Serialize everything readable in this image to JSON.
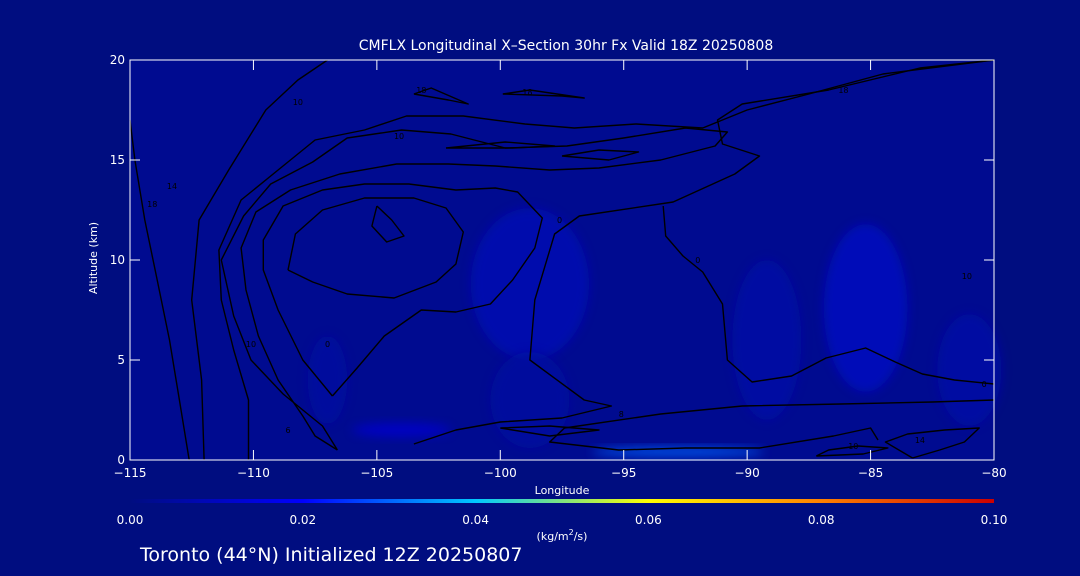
{
  "chart_data": {
    "type": "heatmap",
    "title": "CMFLX Longitudinal X–Section 30hr  Fx Valid 18Z 20250808",
    "xlabel": "Longitude",
    "ylabel": "Altitude (km)",
    "xlim": [
      -115,
      -80
    ],
    "ylim": [
      0,
      20
    ],
    "x_ticks": [
      -115,
      -110,
      -105,
      -100,
      -95,
      -90,
      -85,
      -80
    ],
    "x_tick_labels": [
      "−115",
      "−110",
      "−105",
      "−100",
      "−95",
      "−90",
      "−85",
      "−80"
    ],
    "y_ticks": [
      0,
      5,
      10,
      15,
      20
    ],
    "y_tick_labels": [
      "0",
      "5",
      "10",
      "15",
      "20"
    ],
    "colorbar": {
      "min": 0.0,
      "max": 0.1,
      "ticks": [
        "0.00",
        "0.02",
        "0.04",
        "0.06",
        "0.08",
        "0.10"
      ],
      "unit": "(kg/m²/s)",
      "colors": [
        "#000d80",
        "#0000ff",
        "#00c8ff",
        "#ffff00",
        "#ff8000",
        "#cc0000"
      ]
    },
    "shaded_regions": [
      {
        "lon_center": -98.8,
        "alt_center": 8.8,
        "lon_halfwidth": 2.4,
        "alt_halfwidth": 3.8,
        "value": 0.008
      },
      {
        "lon_center": -98.8,
        "alt_center": 3.0,
        "lon_halfwidth": 1.6,
        "alt_halfwidth": 2.4,
        "value": 0.005
      },
      {
        "lon_center": -85.2,
        "alt_center": 7.6,
        "lon_halfwidth": 1.7,
        "alt_halfwidth": 4.2,
        "value": 0.01
      },
      {
        "lon_center": -89.2,
        "alt_center": 6.0,
        "lon_halfwidth": 1.4,
        "alt_halfwidth": 4.0,
        "value": 0.006
      },
      {
        "lon_center": -81.0,
        "alt_center": 4.5,
        "lon_halfwidth": 1.3,
        "alt_halfwidth": 2.8,
        "value": 0.006
      },
      {
        "lon_center": -107.0,
        "alt_center": 4.0,
        "lon_halfwidth": 0.8,
        "alt_halfwidth": 2.2,
        "value": 0.005
      },
      {
        "lon_center": -104.0,
        "alt_center": 1.5,
        "lon_halfwidth": 2.0,
        "alt_halfwidth": 0.35,
        "value": 0.012
      },
      {
        "lon_center": -92.8,
        "alt_center": 0.4,
        "lon_halfwidth": 3.5,
        "alt_halfwidth": 0.22,
        "value": 0.03
      }
    ],
    "contours": [
      {
        "level": "18",
        "points": [
          [
            -112.6,
            0
          ],
          [
            -113,
            3
          ],
          [
            -113.4,
            6
          ],
          [
            -113.9,
            9
          ],
          [
            -114.4,
            12
          ],
          [
            -114.8,
            15
          ],
          [
            -115,
            17
          ]
        ]
      },
      {
        "level": "14",
        "points": [
          [
            -112.0,
            0
          ],
          [
            -112.1,
            4
          ],
          [
            -112.5,
            8
          ],
          [
            -112.2,
            12
          ],
          [
            -111.0,
            14.5
          ],
          [
            -109.5,
            17.5
          ],
          [
            -108.2,
            19
          ],
          [
            -107,
            20
          ]
        ]
      },
      {
        "level": "10",
        "points": [
          [
            -110.2,
            0
          ],
          [
            -110.2,
            3
          ],
          [
            -110.8,
            5.5
          ],
          [
            -111.3,
            8
          ],
          [
            -111.4,
            10.5
          ],
          [
            -110.5,
            13
          ],
          [
            -109.0,
            14.5
          ],
          [
            -107.5,
            16
          ],
          [
            -105.5,
            16.5
          ],
          [
            -103.8,
            17.2
          ],
          [
            -101.5,
            17.2
          ],
          [
            -99,
            16.8
          ],
          [
            -97,
            16.6
          ],
          [
            -94.5,
            16.8
          ],
          [
            -91.8,
            16.6
          ],
          [
            -90.0,
            17.5
          ],
          [
            -87.5,
            18.3
          ],
          [
            -84.5,
            19.3
          ],
          [
            -80,
            20
          ]
        ]
      },
      {
        "level": "4",
        "points": [
          [
            -103.5,
            0.8
          ],
          [
            -101.8,
            1.5
          ],
          [
            -100,
            1.9
          ],
          [
            -97.5,
            2.1
          ],
          [
            -95.5,
            2.7
          ],
          [
            -96.6,
            3.0
          ],
          [
            -98.8,
            5.0
          ],
          [
            -98.6,
            8.0
          ],
          [
            -97.8,
            11.3
          ],
          [
            -96.8,
            12.2
          ],
          [
            -93.0,
            12.9
          ],
          [
            -90.5,
            14.3
          ],
          [
            -89.5,
            15.2
          ],
          [
            -91.0,
            15.8
          ],
          [
            -91.2,
            17.0
          ],
          [
            -90.2,
            17.8
          ],
          [
            -86.7,
            18.5
          ],
          [
            -83.0,
            19.6
          ],
          [
            -80,
            20
          ]
        ]
      },
      {
        "level": "10",
        "points": [
          [
            -106.6,
            0.5
          ],
          [
            -107.5,
            1.2
          ],
          [
            -108,
            2.2
          ],
          [
            -109,
            4.0
          ],
          [
            -109.8,
            6.2
          ],
          [
            -110.3,
            8.5
          ],
          [
            -110.5,
            10.6
          ],
          [
            -109.9,
            12.4
          ],
          [
            -108.5,
            13.5
          ],
          [
            -106.5,
            14.3
          ],
          [
            -104.2,
            14.8
          ],
          [
            -102.1,
            14.8
          ],
          [
            -100.2,
            14.7
          ],
          [
            -98.0,
            14.5
          ],
          [
            -96.0,
            14.6
          ],
          [
            -93.5,
            15.0
          ],
          [
            -91.3,
            15.7
          ],
          [
            -90.8,
            16.4
          ],
          [
            -92.5,
            16.6
          ],
          [
            -95.0,
            16.1
          ],
          [
            -97.3,
            15.7
          ],
          [
            -99.8,
            15.6
          ],
          [
            -102.0,
            16.3
          ],
          [
            -104.0,
            16.5
          ],
          [
            -106.2,
            16.1
          ],
          [
            -107.6,
            14.9
          ],
          [
            -109.3,
            13.8
          ],
          [
            -110.4,
            12.2
          ],
          [
            -111.3,
            10.0
          ],
          [
            -110.8,
            7.2
          ],
          [
            -110.1,
            5.0
          ],
          [
            -108.8,
            3.3
          ],
          [
            -107.2,
            1.7
          ],
          [
            -106.6,
            0.5
          ]
        ]
      },
      {
        "level": "6",
        "points": [
          [
            -106.8,
            3.2
          ],
          [
            -108.0,
            5.0
          ],
          [
            -109.0,
            7.5
          ],
          [
            -109.6,
            9.5
          ],
          [
            -109.6,
            11.0
          ],
          [
            -108.8,
            12.7
          ],
          [
            -107.2,
            13.5
          ],
          [
            -105.5,
            13.8
          ],
          [
            -103.7,
            13.8
          ],
          [
            -101.8,
            13.5
          ],
          [
            -100.2,
            13.6
          ],
          [
            -99.3,
            13.4
          ],
          [
            -98.3,
            12.1
          ],
          [
            -98.6,
            10.6
          ],
          [
            -99.5,
            9.0
          ],
          [
            -100.4,
            7.8
          ],
          [
            -101.8,
            7.4
          ],
          [
            -103.2,
            7.5
          ],
          [
            -104.7,
            6.2
          ],
          [
            -105.8,
            4.6
          ],
          [
            -106.8,
            3.2
          ]
        ]
      },
      {
        "level": "2",
        "points": [
          [
            -108.6,
            9.5
          ],
          [
            -108.3,
            11.3
          ],
          [
            -107.2,
            12.5
          ],
          [
            -105.5,
            13.1
          ],
          [
            -103.5,
            13.1
          ],
          [
            -102.2,
            12.6
          ],
          [
            -101.5,
            11.4
          ],
          [
            -101.8,
            9.8
          ],
          [
            -102.6,
            8.9
          ],
          [
            -104.3,
            8.1
          ],
          [
            -106.2,
            8.3
          ],
          [
            -107.6,
            8.9
          ],
          [
            -108.6,
            9.5
          ]
        ]
      },
      {
        "level": "2",
        "points": [
          [
            -105.0,
            12.7
          ],
          [
            -104.4,
            12.0
          ],
          [
            -103.9,
            11.2
          ],
          [
            -104.6,
            10.9
          ],
          [
            -105.2,
            11.7
          ],
          [
            -105.0,
            12.7
          ]
        ]
      },
      {
        "level": "18",
        "points": [
          [
            -103.5,
            18.3
          ],
          [
            -102.1,
            18.0
          ],
          [
            -101.3,
            17.8
          ],
          [
            -102.8,
            18.6
          ],
          [
            -103.5,
            18.3
          ]
        ]
      },
      {
        "level": "18",
        "points": [
          [
            -99.9,
            18.3
          ],
          [
            -97.5,
            18.2
          ],
          [
            -96.6,
            18.1
          ],
          [
            -98.8,
            18.5
          ],
          [
            -99.9,
            18.3
          ]
        ]
      },
      {
        "level": "",
        "points": [
          [
            -102.2,
            15.6
          ],
          [
            -99.5,
            15.6
          ],
          [
            -97.8,
            15.7
          ],
          [
            -99.8,
            15.9
          ],
          [
            -102.2,
            15.6
          ]
        ]
      },
      {
        "level": "",
        "points": [
          [
            -97.5,
            15.2
          ],
          [
            -95.6,
            15.0
          ],
          [
            -94.4,
            15.4
          ],
          [
            -96.0,
            15.5
          ],
          [
            -97.5,
            15.2
          ]
        ]
      },
      {
        "level": "",
        "points": [
          [
            -100.0,
            1.6
          ],
          [
            -98.0,
            1.7
          ],
          [
            -96.0,
            1.5
          ],
          [
            -98.0,
            1.2
          ],
          [
            -100.0,
            1.6
          ]
        ]
      },
      {
        "level": "10",
        "points": [
          [
            -80,
            3.0
          ],
          [
            -82.5,
            2.9
          ],
          [
            -86.2,
            2.8
          ],
          [
            -90.2,
            2.7
          ],
          [
            -93.5,
            2.3
          ],
          [
            -97.4,
            1.6
          ],
          [
            -98.0,
            0.9
          ],
          [
            -95.2,
            0.5
          ],
          [
            -92.5,
            0.6
          ],
          [
            -89.5,
            0.6
          ],
          [
            -86.5,
            1.2
          ],
          [
            -85.0,
            1.6
          ],
          [
            -84.7,
            1.0
          ]
        ]
      },
      {
        "level": "4",
        "points": [
          [
            -80,
            3.8
          ],
          [
            -81.6,
            4.0
          ],
          [
            -82.9,
            4.3
          ],
          [
            -84.0,
            4.9
          ],
          [
            -85.2,
            5.6
          ],
          [
            -86.8,
            5.1
          ],
          [
            -88.2,
            4.2
          ],
          [
            -89.8,
            3.9
          ],
          [
            -90.8,
            5.0
          ],
          [
            -91.0,
            7.8
          ],
          [
            -91.8,
            9.4
          ],
          [
            -92.6,
            10.2
          ],
          [
            -93.3,
            11.2
          ],
          [
            -93.4,
            12.7
          ]
        ]
      },
      {
        "level": "10",
        "points": [
          [
            -87.2,
            0.2
          ],
          [
            -86.7,
            0.5
          ],
          [
            -85.5,
            0.7
          ],
          [
            -84.3,
            0.6
          ],
          [
            -85.3,
            0.3
          ],
          [
            -87.2,
            0.2
          ]
        ]
      },
      {
        "level": "",
        "points": [
          [
            -83.3,
            0.1
          ],
          [
            -82.2,
            0.5
          ],
          [
            -81.2,
            0.9
          ],
          [
            -80.6,
            1.6
          ],
          [
            -82.0,
            1.5
          ],
          [
            -83.5,
            1.3
          ],
          [
            -84.4,
            0.9
          ],
          [
            -83.3,
            0.1
          ]
        ]
      }
    ],
    "contour_labels": [
      {
        "text": "18",
        "lon": -114.1,
        "alt": 12.8
      },
      {
        "text": "14",
        "lon": -113.3,
        "alt": 13.7
      },
      {
        "text": "10",
        "lon": -110.1,
        "alt": 5.8
      },
      {
        "text": "6",
        "lon": -108.6,
        "alt": 1.5
      },
      {
        "text": "0",
        "lon": -107.0,
        "alt": 5.8
      },
      {
        "text": "10",
        "lon": -108.2,
        "alt": 17.9
      },
      {
        "text": "10",
        "lon": -104.1,
        "alt": 16.2
      },
      {
        "text": "18",
        "lon": -103.2,
        "alt": 18.5
      },
      {
        "text": "18",
        "lon": -98.9,
        "alt": 18.4
      },
      {
        "text": "0",
        "lon": -97.6,
        "alt": 12.0
      },
      {
        "text": "8",
        "lon": -95.1,
        "alt": 2.3
      },
      {
        "text": "0",
        "lon": -92.0,
        "alt": 10.0
      },
      {
        "text": "18",
        "lon": -86.1,
        "alt": 18.5
      },
      {
        "text": "10",
        "lon": -81.1,
        "alt": 9.2
      },
      {
        "text": "0",
        "lon": -80.4,
        "alt": 3.8
      },
      {
        "text": "10",
        "lon": -85.7,
        "alt": 0.7
      },
      {
        "text": "14",
        "lon": -83.0,
        "alt": 1.0
      }
    ]
  },
  "footer": {
    "location": "Toronto (44°N) Initialized 12Z 20250807"
  }
}
